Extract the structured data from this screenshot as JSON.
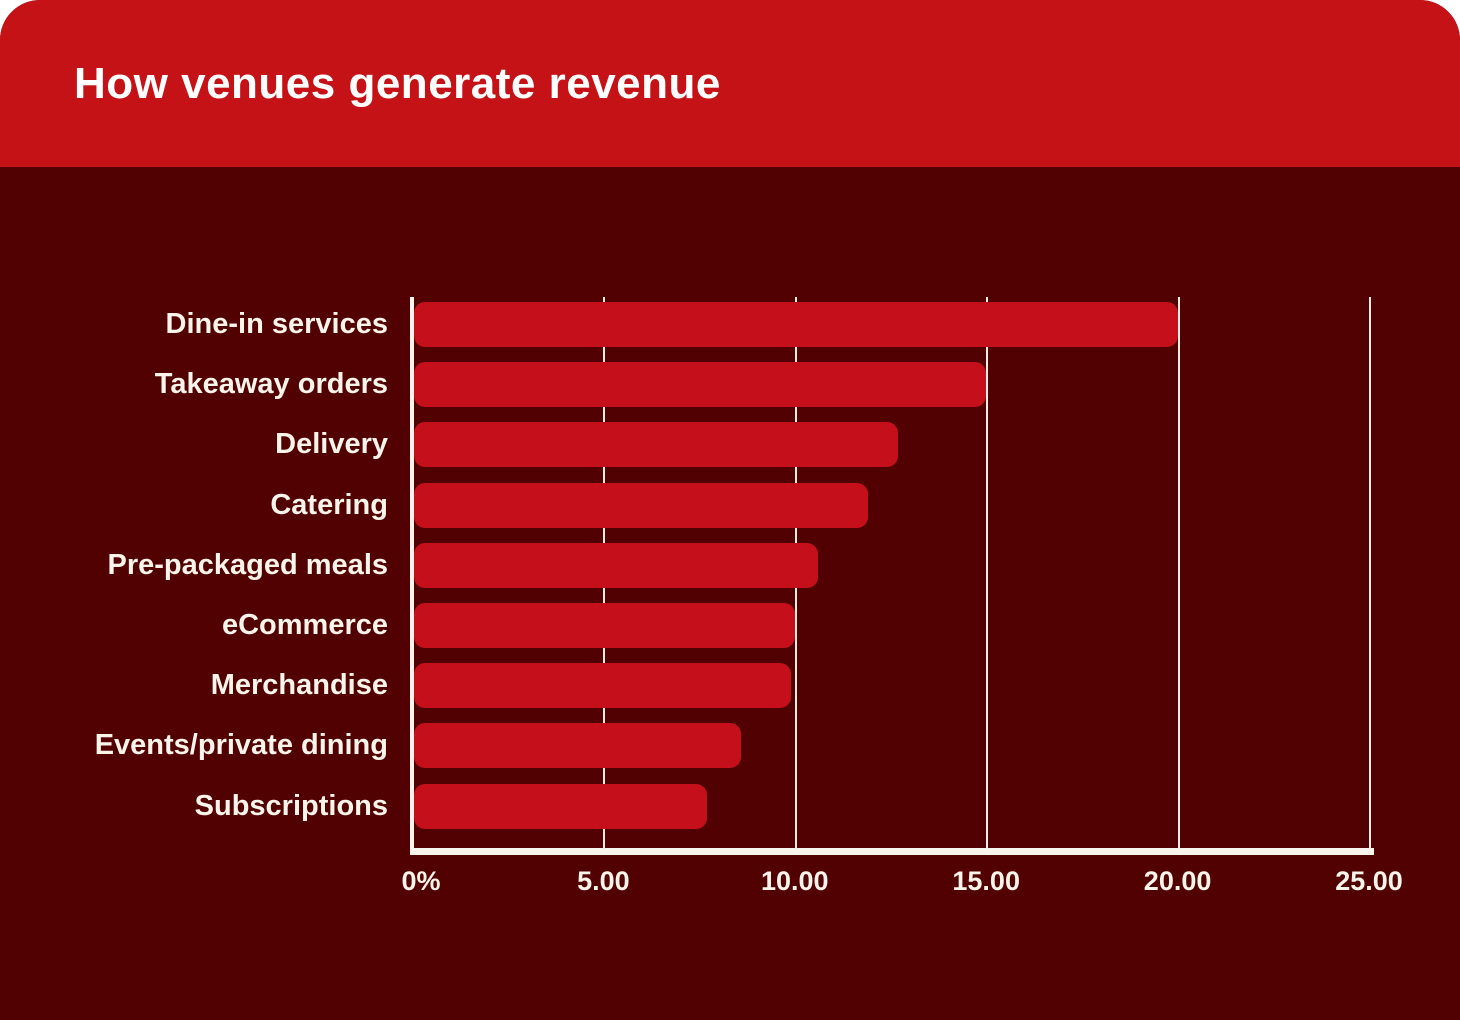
{
  "header": {
    "title": "How venues generate revenue"
  },
  "colors": {
    "header_bg": "#C51217",
    "body_bg": "#520103",
    "bar": "#C5101C",
    "axis": "#F9F4EC",
    "grid": "#F3ECE2",
    "label_text": "#FAF4EA",
    "title_text": "#FFFFFF"
  },
  "chart_data": {
    "type": "bar",
    "orientation": "horizontal",
    "title": "How venues generate revenue",
    "categories": [
      "Dine-in services",
      "Takeaway orders",
      "Delivery",
      "Catering",
      "Pre-packaged meals",
      "eCommerce",
      "Merchandise",
      "Events/private dining",
      "Subscriptions"
    ],
    "values": [
      20.0,
      15.0,
      12.7,
      11.9,
      10.6,
      10.0,
      9.9,
      8.6,
      7.7
    ],
    "unit": "percent",
    "xlabel": "",
    "ylabel": "",
    "xlim": [
      0,
      25
    ],
    "x_ticks": [
      0,
      5,
      10,
      15,
      20,
      25
    ],
    "x_tick_labels": [
      "0%",
      "5.00",
      "10.00",
      "15.00",
      "20.00",
      "25.00"
    ],
    "grid": "vertical-white-gridlines-behind-bars",
    "legend": "none"
  }
}
